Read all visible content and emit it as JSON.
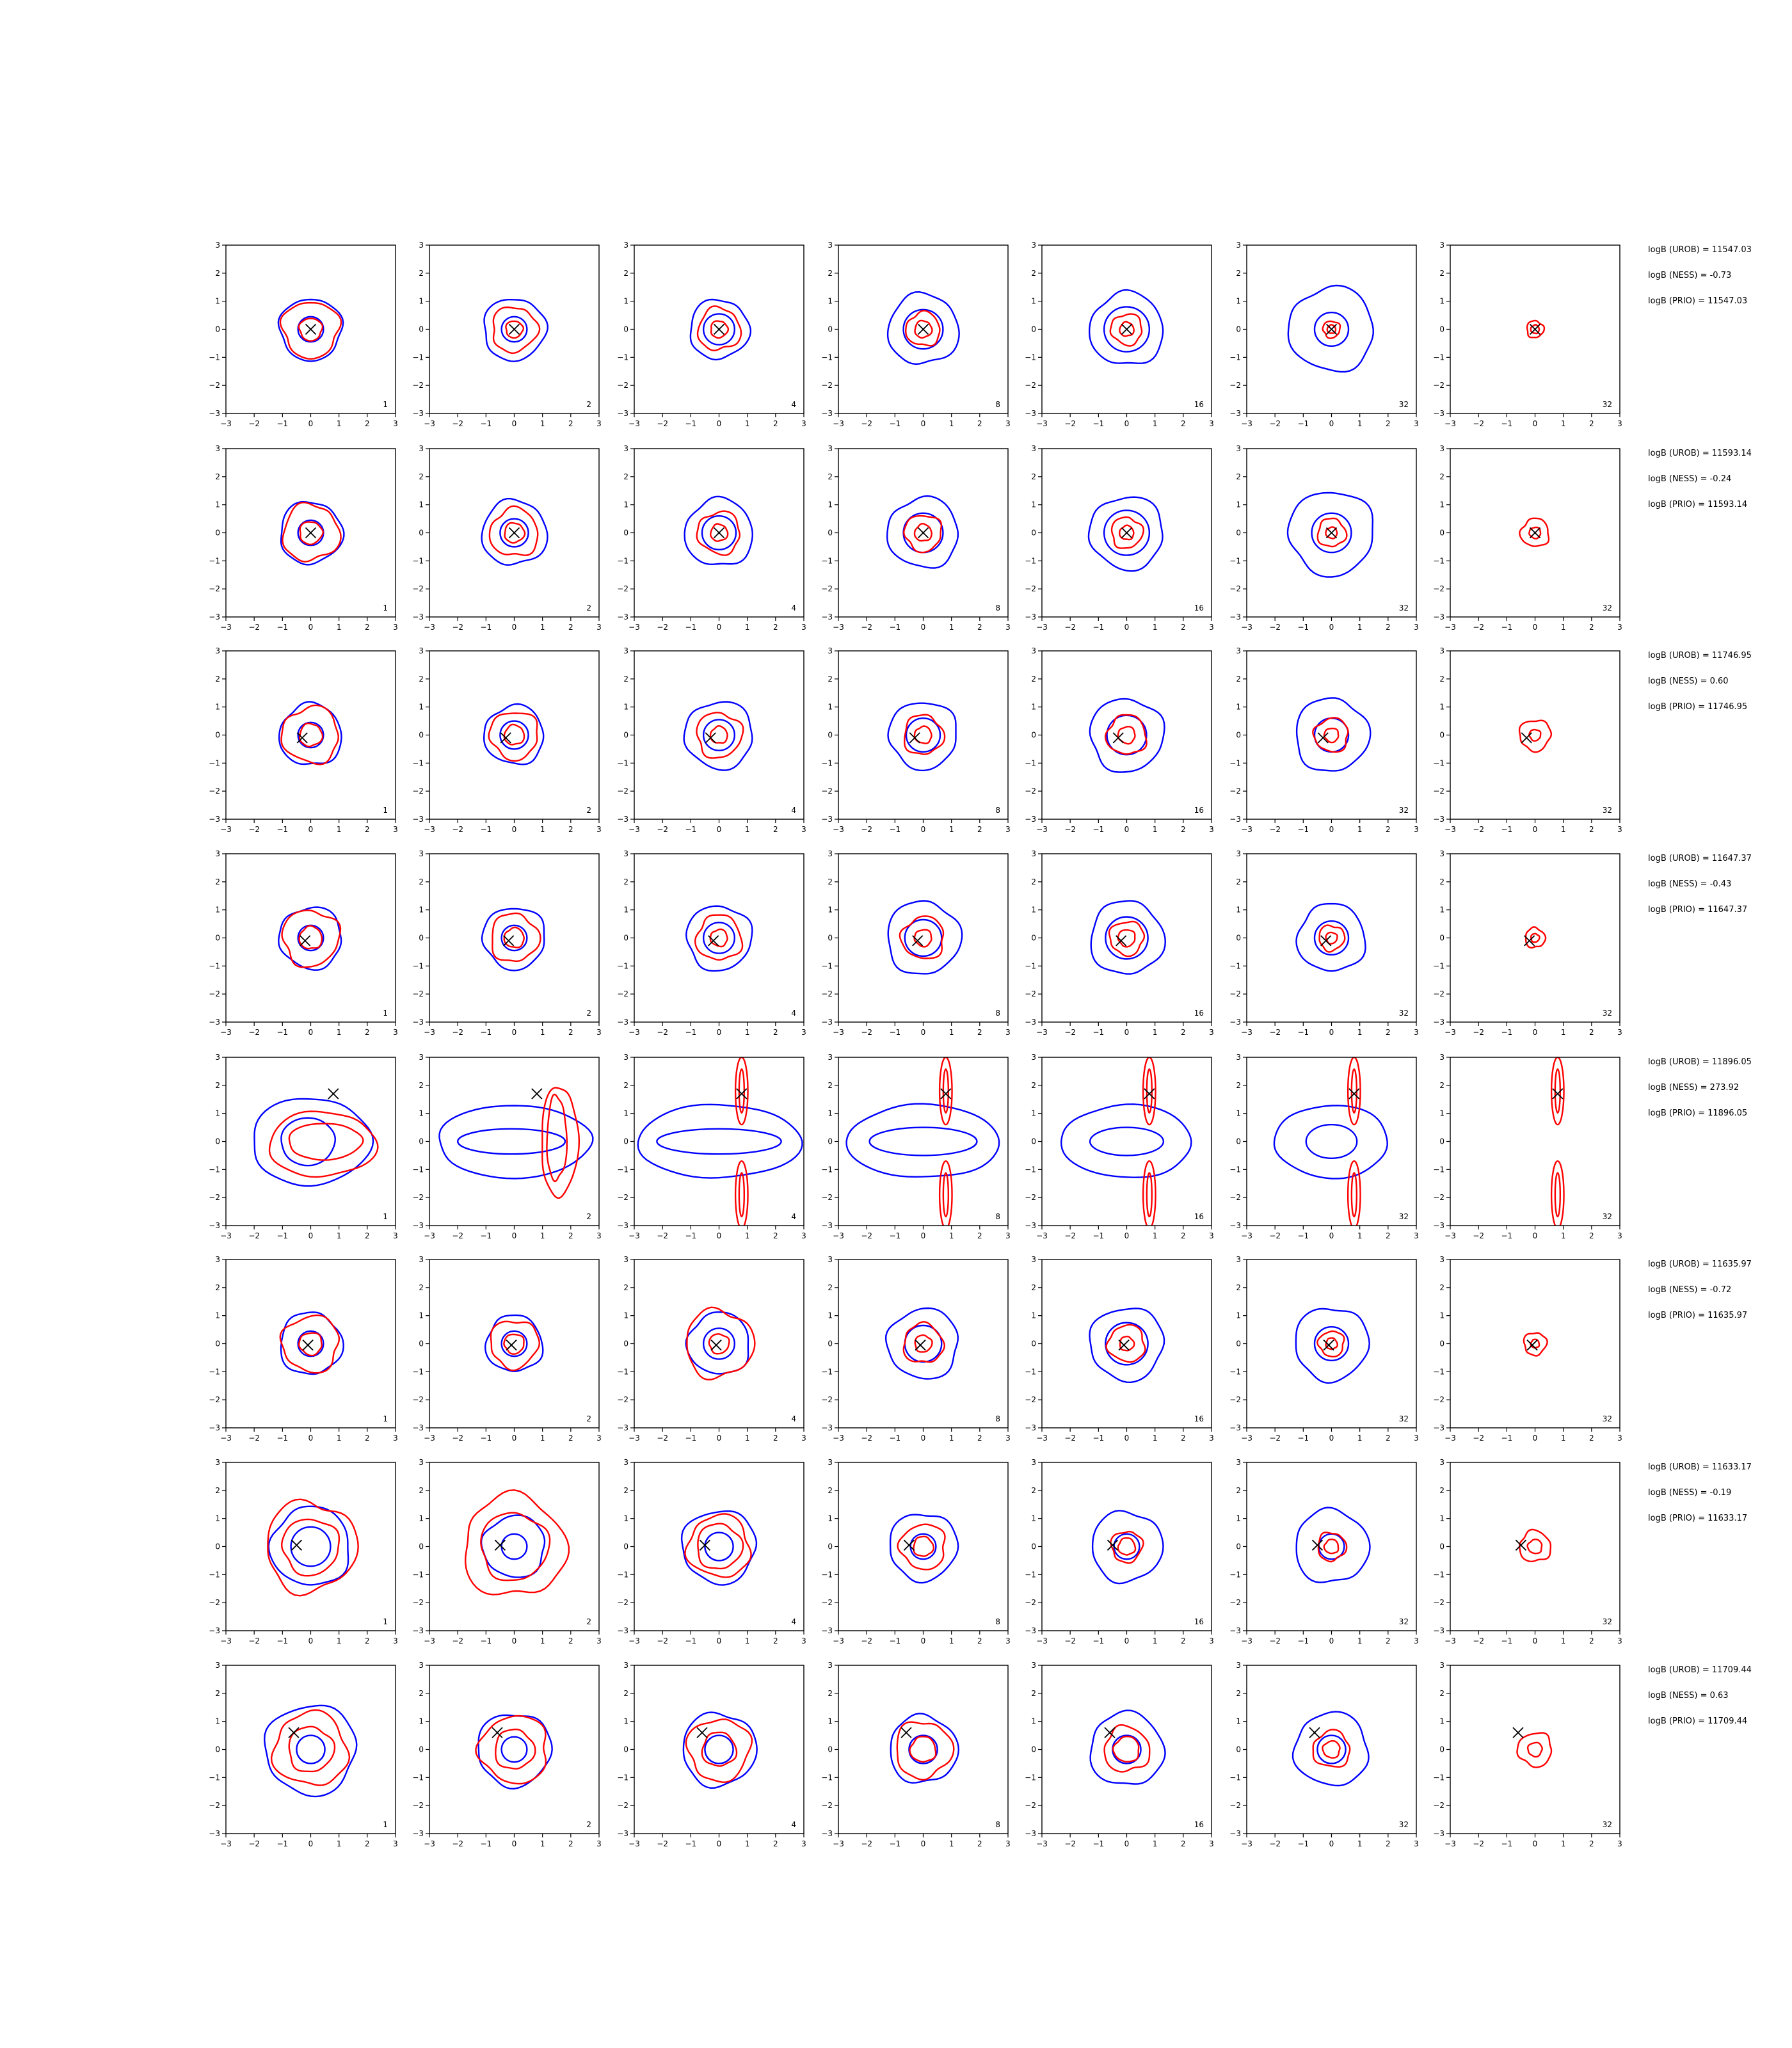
{
  "figure": {
    "colors": {
      "blue": "#0000ff",
      "red": "#ff0000",
      "marker": "#000000",
      "axes": "#000000"
    },
    "ticks": [
      "−3",
      "−2",
      "−1",
      "0",
      "1",
      "2",
      "3"
    ],
    "xlim": [
      -3,
      3
    ],
    "ylim": [
      -3,
      3
    ],
    "column_labels": [
      "1",
      "2",
      "4",
      "8",
      "16",
      "32",
      "32"
    ]
  },
  "chart_data": {
    "type": "contour",
    "grid": {
      "rows": 8,
      "cols": 7
    },
    "xlim": [
      -3,
      3
    ],
    "ylim": [
      -3,
      3
    ],
    "rows": [
      {
        "uroblabel": "logB (UROB) = 11547.03",
        "nesslabel": "logB (NESS) = -0.73",
        "priolabel": "logB (PRIO) = 11547.03",
        "marker": [
          0.0,
          0.0
        ],
        "blue": [
          [
            1.1,
            0.45
          ],
          [
            1.1,
            0.45
          ],
          [
            1.05,
            0.55
          ],
          [
            1.25,
            0.7
          ],
          [
            1.3,
            0.8
          ],
          [
            1.5,
            0.6
          ],
          [
            0,
            0
          ]
        ],
        "red": [
          [
            1.0,
            0.4
          ],
          [
            0.8,
            0.3
          ],
          [
            0.75,
            0.3
          ],
          [
            0.6,
            0.3
          ],
          [
            0.55,
            0.25
          ],
          [
            0.3,
            0.15
          ],
          [
            0.3,
            0.15
          ]
        ]
      },
      {
        "uroblabel": "logB (UROB) = 11593.14",
        "nesslabel": "logB (NESS) = -0.24",
        "priolabel": "logB (PRIO) = 11593.14",
        "marker": [
          0.0,
          0.0
        ],
        "blue": [
          [
            1.1,
            0.45
          ],
          [
            1.15,
            0.5
          ],
          [
            1.2,
            0.6
          ],
          [
            1.25,
            0.7
          ],
          [
            1.3,
            0.8
          ],
          [
            1.5,
            0.7
          ],
          [
            0,
            0
          ]
        ],
        "red": [
          [
            1.0,
            0.4
          ],
          [
            0.85,
            0.35
          ],
          [
            0.75,
            0.3
          ],
          [
            0.65,
            0.3
          ],
          [
            0.55,
            0.25
          ],
          [
            0.5,
            0.2
          ],
          [
            0.5,
            0.2
          ]
        ]
      },
      {
        "uroblabel": "logB (UROB) = 11746.95",
        "nesslabel": "logB (NESS) = 0.60",
        "priolabel": "logB (PRIO) = 11746.95",
        "marker": [
          -0.3,
          -0.1
        ],
        "blue": [
          [
            1.1,
            0.45
          ],
          [
            1.05,
            0.5
          ],
          [
            1.2,
            0.55
          ],
          [
            1.2,
            0.6
          ],
          [
            1.3,
            0.7
          ],
          [
            1.3,
            0.6
          ],
          [
            0,
            0
          ]
        ],
        "red": [
          [
            1.0,
            0.4
          ],
          [
            0.85,
            0.35
          ],
          [
            0.8,
            0.3
          ],
          [
            0.7,
            0.3
          ],
          [
            0.7,
            0.3
          ],
          [
            0.6,
            0.25
          ],
          [
            0.55,
            0.2
          ]
        ]
      },
      {
        "uroblabel": "logB (UROB) = 11647.37",
        "nesslabel": "logB (NESS) = -0.43",
        "priolabel": "logB (PRIO) = 11647.37",
        "marker": [
          -0.2,
          -0.1
        ],
        "blue": [
          [
            1.1,
            0.45
          ],
          [
            1.1,
            0.45
          ],
          [
            1.15,
            0.55
          ],
          [
            1.3,
            0.65
          ],
          [
            1.3,
            0.75
          ],
          [
            1.2,
            0.6
          ],
          [
            0,
            0
          ]
        ],
        "red": [
          [
            1.0,
            0.4
          ],
          [
            0.85,
            0.35
          ],
          [
            0.8,
            0.3
          ],
          [
            0.75,
            0.3
          ],
          [
            0.6,
            0.3
          ],
          [
            0.45,
            0.2
          ],
          [
            0.35,
            0.15
          ]
        ]
      },
      {
        "uroblabel": "logB (UROB) = 11896.05",
        "nesslabel": "logB (NESS) = 273.92",
        "priolabel": "logB (PRIO) = 11896.05",
        "marker": [
          0.8,
          1.7
        ],
        "special": true
      },
      {
        "uroblabel": "logB (UROB) = 11635.97",
        "nesslabel": "logB (NESS) = -0.72",
        "priolabel": "logB (PRIO) = 11635.97",
        "marker": [
          -0.1,
          -0.05
        ],
        "blue": [
          [
            1.1,
            0.45
          ],
          [
            1.0,
            0.45
          ],
          [
            1.1,
            0.55
          ],
          [
            1.25,
            0.65
          ],
          [
            1.3,
            0.75
          ],
          [
            1.3,
            0.6
          ],
          [
            0,
            0
          ]
        ],
        "red": [
          [
            1.0,
            0.4
          ],
          [
            0.85,
            0.35
          ],
          [
            1.2,
            0.35
          ],
          [
            0.7,
            0.3
          ],
          [
            0.65,
            0.25
          ],
          [
            0.45,
            0.2
          ],
          [
            0.4,
            0.15
          ]
        ]
      },
      {
        "uroblabel": "logB (UROB) = 11633.17",
        "nesslabel": "logB (NESS) = -0.19",
        "priolabel": "logB (PRIO) = 11633.17",
        "marker": [
          -0.5,
          0.05
        ],
        "blue": [
          [
            1.4,
            0.7
          ],
          [
            1.1,
            0.45
          ],
          [
            1.3,
            0.5
          ],
          [
            1.2,
            0.45
          ],
          [
            1.25,
            0.45
          ],
          [
            1.3,
            0.45
          ],
          [
            0,
            0
          ]
        ],
        "red": [
          [
            1.6,
            1.0
          ],
          [
            1.8,
            1.2
          ],
          [
            1.1,
            0.8
          ],
          [
            0.8,
            0.35
          ],
          [
            0.55,
            0.3
          ],
          [
            0.5,
            0.25
          ],
          [
            0.55,
            0.25
          ]
        ]
      },
      {
        "uroblabel": "logB (UROB) = 11709.44",
        "nesslabel": "logB (NESS) = 0.63",
        "priolabel": "logB (PRIO) = 11709.44",
        "marker": [
          -0.6,
          0.6
        ],
        "blue": [
          [
            1.6,
            0.5
          ],
          [
            1.3,
            0.45
          ],
          [
            1.3,
            0.5
          ],
          [
            1.2,
            0.5
          ],
          [
            1.3,
            0.5
          ],
          [
            1.3,
            0.5
          ],
          [
            0,
            0
          ]
        ],
        "red": [
          [
            1.3,
            0.8
          ],
          [
            1.2,
            0.7
          ],
          [
            1.1,
            0.6
          ],
          [
            1.0,
            0.45
          ],
          [
            0.8,
            0.45
          ],
          [
            0.65,
            0.3
          ],
          [
            0.6,
            0.25
          ]
        ]
      }
    ]
  }
}
